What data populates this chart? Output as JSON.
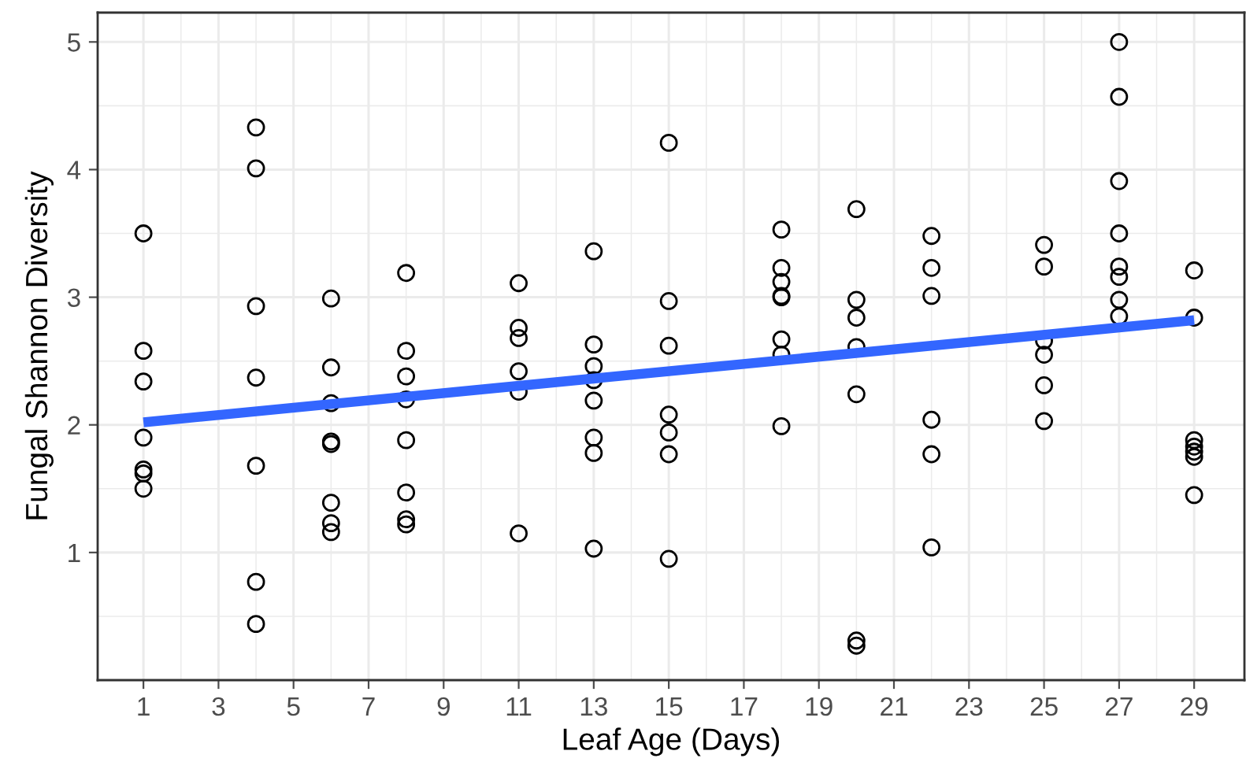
{
  "chart_data": {
    "type": "scatter",
    "xlabel": "Leaf Age (Days)",
    "ylabel": "Fungal Shannon Diversity",
    "xlim": [
      -0.22,
      30.34
    ],
    "ylim": [
      0.0,
      5.23
    ],
    "xticks": [
      1,
      3,
      5,
      7,
      9,
      11,
      13,
      15,
      17,
      19,
      21,
      23,
      25,
      27,
      29
    ],
    "yticks": [
      1,
      2,
      3,
      4,
      5
    ],
    "grid": true,
    "series": [
      {
        "marker": "circle",
        "color": "#000000",
        "x": [
          1,
          1,
          1,
          1,
          1,
          1,
          1,
          4,
          4,
          4,
          4,
          4,
          4,
          4,
          6,
          6,
          6,
          6,
          6,
          6,
          6,
          6,
          8,
          8,
          8,
          8,
          8,
          8,
          8,
          8,
          11,
          11,
          11,
          11,
          11,
          11,
          13,
          13,
          13,
          13,
          13,
          13,
          13,
          13,
          15,
          15,
          15,
          15,
          15,
          15,
          15,
          18,
          18,
          18,
          18,
          18,
          18,
          18,
          18,
          20,
          20,
          20,
          20,
          20,
          20,
          20,
          22,
          22,
          22,
          22,
          22,
          22,
          25,
          25,
          25,
          25,
          25,
          25,
          27,
          27,
          27,
          27,
          27,
          27,
          27,
          27,
          29,
          29,
          29,
          29,
          29,
          29,
          29
        ],
        "values": [
          3.5,
          2.58,
          2.34,
          1.9,
          1.65,
          1.62,
          1.5,
          4.33,
          4.01,
          2.93,
          2.37,
          1.68,
          0.77,
          0.44,
          2.99,
          2.45,
          2.17,
          1.87,
          1.85,
          1.39,
          1.23,
          1.16,
          3.19,
          2.58,
          2.38,
          2.2,
          1.88,
          1.47,
          1.26,
          1.22,
          3.11,
          2.76,
          2.68,
          2.42,
          2.26,
          1.15,
          3.36,
          2.63,
          2.46,
          2.35,
          2.19,
          1.9,
          1.78,
          1.03,
          4.21,
          2.97,
          2.62,
          2.08,
          1.94,
          1.77,
          0.95,
          3.53,
          3.23,
          3.12,
          3.01,
          3.0,
          2.67,
          2.55,
          1.99,
          3.69,
          2.98,
          2.84,
          2.61,
          2.24,
          0.31,
          0.27,
          3.48,
          3.23,
          3.01,
          2.04,
          1.77,
          1.04,
          3.41,
          3.24,
          2.66,
          2.55,
          2.31,
          2.03,
          5.0,
          4.57,
          3.91,
          3.5,
          3.24,
          3.16,
          2.98,
          2.85,
          3.21,
          2.84,
          1.88,
          1.83,
          1.79,
          1.75,
          1.45
        ]
      },
      {
        "type": "line",
        "marker": "none",
        "color": "#3366ff",
        "x": [
          1,
          29
        ],
        "values": [
          2.02,
          2.82
        ]
      }
    ]
  }
}
